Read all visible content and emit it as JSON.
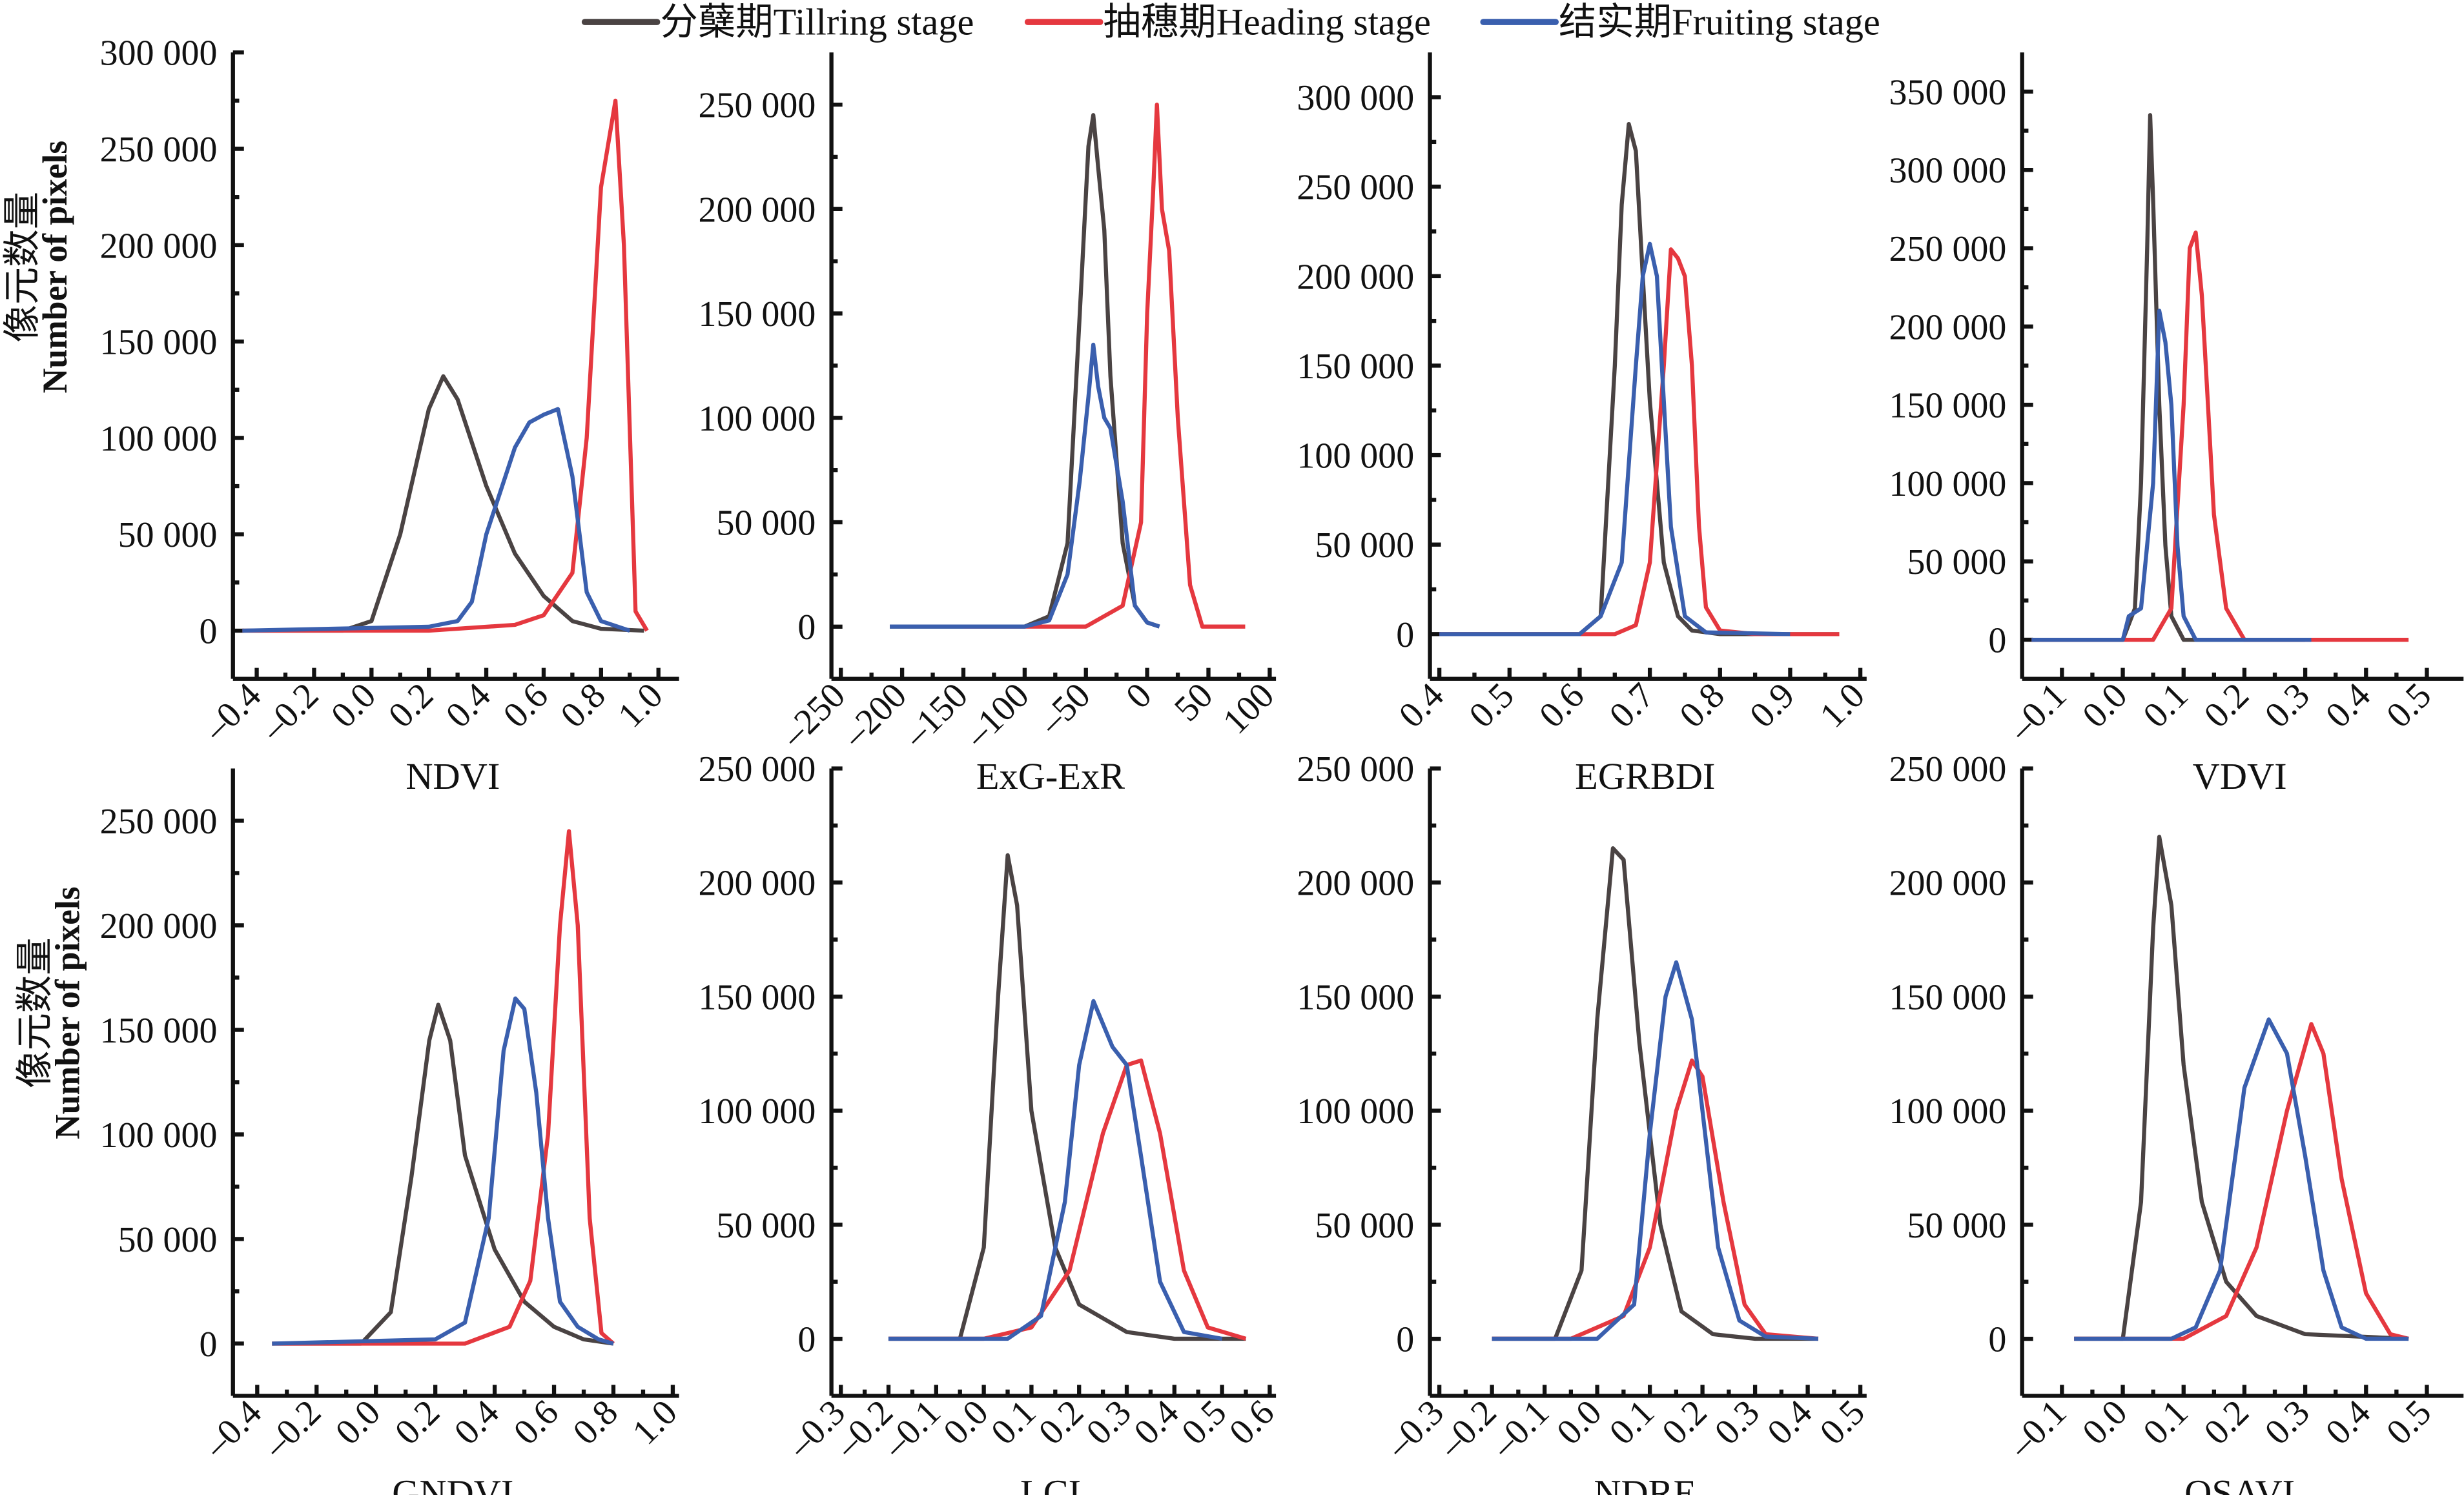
{
  "legend": [
    {
      "label": "分蘖期Tillring stage",
      "color": "#4a4343"
    },
    {
      "label": "抽穗期Heading stage",
      "color": "#e5383f"
    },
    {
      "label": "结实期Fruiting stage",
      "color": "#3a5fae"
    }
  ],
  "ylabel": {
    "cn": "像元数量",
    "en": "Number of pixels"
  },
  "chart_data": [
    {
      "type": "line",
      "title": "",
      "xlabel": "NDVI",
      "ylabel": "像元数量 Number of pixels",
      "xlim": [
        -0.45,
        1.05
      ],
      "xticks": [
        -0.4,
        -0.2,
        0.0,
        0.2,
        0.4,
        0.6,
        0.8,
        1.0
      ],
      "xtick_labels": [
        "-0.4",
        "-0.2",
        "0.0",
        "0.2",
        "0.4",
        "0.6",
        "0.8",
        "1.0"
      ],
      "ylim": [
        -25000,
        300000
      ],
      "yticks": [
        0,
        50000,
        100000,
        150000,
        200000,
        250000,
        300000
      ],
      "ytick_labels": [
        "0",
        "50 000",
        "100 000",
        "150 000",
        "200 000",
        "250 000",
        "300 000"
      ],
      "series": [
        {
          "name": "分蘖期Tillring stage",
          "x": [
            -0.45,
            -0.1,
            0.0,
            0.1,
            0.2,
            0.25,
            0.3,
            0.4,
            0.5,
            0.6,
            0.7,
            0.8,
            0.95
          ],
          "y": [
            0,
            0,
            5000,
            50000,
            115000,
            132000,
            120000,
            75000,
            40000,
            18000,
            5000,
            1000,
            0
          ]
        },
        {
          "name": "抽穗期Heading stage",
          "x": [
            -0.45,
            0.2,
            0.5,
            0.6,
            0.7,
            0.75,
            0.8,
            0.85,
            0.88,
            0.92,
            0.96
          ],
          "y": [
            0,
            0,
            3000,
            8000,
            30000,
            100000,
            230000,
            275000,
            200000,
            10000,
            0
          ]
        },
        {
          "name": "结实期Fruiting stage",
          "x": [
            -0.45,
            0.2,
            0.3,
            0.35,
            0.4,
            0.5,
            0.55,
            0.6,
            0.65,
            0.7,
            0.75,
            0.8,
            0.9
          ],
          "y": [
            0,
            2000,
            5000,
            15000,
            50000,
            95000,
            108000,
            112000,
            115000,
            80000,
            20000,
            5000,
            0
          ]
        }
      ]
    },
    {
      "type": "line",
      "xlabel": "ExG-ExR",
      "xlim": [
        -250,
        100
      ],
      "xticks": [
        -250,
        -200,
        -150,
        -100,
        -50,
        0,
        50,
        100
      ],
      "xtick_labels": [
        "-250",
        "-200",
        "-150",
        "-100",
        "-50",
        "0",
        "50",
        "100"
      ],
      "ylim": [
        -25000,
        275000
      ],
      "yticks": [
        0,
        50000,
        100000,
        150000,
        200000,
        250000
      ],
      "ytick_labels": [
        "0",
        "50 000",
        "100 000",
        "150 000",
        "200 000",
        "250 000"
      ],
      "series": [
        {
          "name": "分蘖期Tillring stage",
          "x": [
            -210,
            -100,
            -80,
            -65,
            -55,
            -48,
            -44,
            -40,
            -35,
            -30,
            -20,
            -10,
            0,
            10
          ],
          "y": [
            0,
            0,
            5000,
            40000,
            150000,
            230000,
            245000,
            220000,
            190000,
            120000,
            40000,
            10000,
            2000,
            0
          ]
        },
        {
          "name": "抽穗期Heading stage",
          "x": [
            -150,
            -50,
            -20,
            -5,
            0,
            5,
            8,
            12,
            18,
            25,
            35,
            45,
            80
          ],
          "y": [
            0,
            0,
            10000,
            50000,
            150000,
            210000,
            250000,
            200000,
            180000,
            100000,
            20000,
            0,
            0
          ]
        },
        {
          "name": "结实期Fruiting stage",
          "x": [
            -210,
            -100,
            -80,
            -65,
            -55,
            -48,
            -44,
            -40,
            -35,
            -30,
            -20,
            -10,
            0,
            10
          ],
          "y": [
            0,
            0,
            3000,
            25000,
            70000,
            110000,
            135000,
            115000,
            100000,
            95000,
            60000,
            10000,
            2000,
            0
          ]
        }
      ]
    },
    {
      "type": "line",
      "xlabel": "EGRBDI",
      "xlim": [
        0.4,
        1.0
      ],
      "xticks": [
        0.4,
        0.5,
        0.6,
        0.7,
        0.8,
        0.9,
        1.0
      ],
      "xtick_labels": [
        "0.4",
        "0.5",
        "0.6",
        "0.7",
        "0.8",
        "0.9",
        "1.0"
      ],
      "ylim": [
        -25000,
        325000
      ],
      "yticks": [
        0,
        50000,
        100000,
        150000,
        200000,
        250000,
        300000
      ],
      "ytick_labels": [
        "0",
        "50 000",
        "100 000",
        "150 000",
        "200 000",
        "250 000",
        "300 000"
      ],
      "series": [
        {
          "name": "分蘖期Tillring stage",
          "x": [
            0.4,
            0.6,
            0.63,
            0.65,
            0.66,
            0.67,
            0.68,
            0.69,
            0.7,
            0.72,
            0.74,
            0.76,
            0.8,
            0.97
          ],
          "y": [
            0,
            0,
            10000,
            150000,
            240000,
            285000,
            270000,
            200000,
            130000,
            40000,
            10000,
            2000,
            0,
            0
          ]
        },
        {
          "name": "抽穗期Heading stage",
          "x": [
            0.4,
            0.65,
            0.68,
            0.7,
            0.72,
            0.73,
            0.74,
            0.75,
            0.76,
            0.77,
            0.78,
            0.8,
            0.85,
            0.97
          ],
          "y": [
            0,
            0,
            5000,
            40000,
            150000,
            215000,
            210000,
            200000,
            150000,
            60000,
            15000,
            2000,
            0,
            0
          ]
        },
        {
          "name": "结实期Fruiting stage",
          "x": [
            0.4,
            0.6,
            0.63,
            0.66,
            0.68,
            0.69,
            0.7,
            0.71,
            0.72,
            0.73,
            0.75,
            0.78,
            0.9
          ],
          "y": [
            0,
            0,
            10000,
            40000,
            150000,
            200000,
            218000,
            200000,
            130000,
            60000,
            10000,
            1000,
            0
          ]
        }
      ]
    },
    {
      "type": "line",
      "xlabel": "VDVI",
      "xlim": [
        -0.15,
        0.55
      ],
      "xticks": [
        -0.1,
        0.0,
        0.1,
        0.2,
        0.3,
        0.4,
        0.5
      ],
      "xtick_labels": [
        "-0.1",
        "0.0",
        "0.1",
        "0.2",
        "0.3",
        "0.4",
        "0.5"
      ],
      "ylim": [
        -25000,
        375000
      ],
      "yticks": [
        0,
        50000,
        100000,
        150000,
        200000,
        250000,
        300000,
        350000
      ],
      "ytick_labels": [
        "0",
        "50 000",
        "100 000",
        "150 000",
        "200 000",
        "250 000",
        "300 000",
        "350 000"
      ],
      "series": [
        {
          "name": "分蘖期Tillring stage",
          "x": [
            -0.15,
            0.0,
            0.02,
            0.03,
            0.04,
            0.045,
            0.05,
            0.06,
            0.07,
            0.08,
            0.1,
            0.3
          ],
          "y": [
            0,
            0,
            20000,
            100000,
            250000,
            335000,
            280000,
            150000,
            60000,
            15000,
            0,
            0
          ]
        },
        {
          "name": "抽穗期Heading stage",
          "x": [
            -0.15,
            0.05,
            0.08,
            0.1,
            0.11,
            0.12,
            0.13,
            0.14,
            0.15,
            0.17,
            0.2,
            0.47
          ],
          "y": [
            0,
            0,
            20000,
            150000,
            250000,
            260000,
            220000,
            150000,
            80000,
            20000,
            0,
            0
          ]
        },
        {
          "name": "结实期Fruiting stage",
          "x": [
            -0.15,
            0.0,
            0.01,
            0.03,
            0.05,
            0.06,
            0.07,
            0.08,
            0.09,
            0.1,
            0.12,
            0.31
          ],
          "y": [
            0,
            0,
            15000,
            20000,
            100000,
            210000,
            190000,
            150000,
            60000,
            15000,
            0,
            0
          ]
        }
      ]
    },
    {
      "type": "line",
      "xlabel": "GNDVI",
      "xlim": [
        -0.45,
        1.0
      ],
      "xticks": [
        -0.4,
        -0.2,
        0.0,
        0.2,
        0.4,
        0.6,
        0.8,
        1.0
      ],
      "xtick_labels": [
        "-0.4",
        "-0.2",
        "0.0",
        "0.2",
        "0.4",
        "0.6",
        "0.8",
        "1.0"
      ],
      "ylim": [
        -25000,
        275000
      ],
      "yticks": [
        0,
        50000,
        100000,
        150000,
        200000,
        250000
      ],
      "ytick_labels": [
        "0",
        "50 000",
        "100 000",
        "150 000",
        "200 000",
        "250 000"
      ],
      "series": [
        {
          "name": "分蘖期Tillring stage",
          "x": [
            -0.35,
            -0.05,
            0.05,
            0.12,
            0.18,
            0.21,
            0.25,
            0.3,
            0.4,
            0.5,
            0.6,
            0.7,
            0.8
          ],
          "y": [
            0,
            0,
            15000,
            80000,
            145000,
            162000,
            145000,
            90000,
            45000,
            20000,
            8000,
            2000,
            0
          ]
        },
        {
          "name": "抽穗期Heading stage",
          "x": [
            -0.35,
            0.3,
            0.45,
            0.52,
            0.58,
            0.62,
            0.65,
            0.68,
            0.72,
            0.76,
            0.8
          ],
          "y": [
            0,
            0,
            8000,
            30000,
            100000,
            200000,
            245000,
            200000,
            60000,
            5000,
            0
          ]
        },
        {
          "name": "结实期Fruiting stage",
          "x": [
            -0.35,
            0.2,
            0.3,
            0.38,
            0.43,
            0.47,
            0.5,
            0.54,
            0.58,
            0.62,
            0.68,
            0.75,
            0.8
          ],
          "y": [
            0,
            2000,
            10000,
            60000,
            140000,
            165000,
            160000,
            120000,
            60000,
            20000,
            8000,
            2000,
            0
          ]
        }
      ]
    },
    {
      "type": "line",
      "xlabel": "LCI",
      "xlim": [
        -0.3,
        0.6
      ],
      "xticks": [
        -0.3,
        -0.2,
        -0.1,
        0.0,
        0.1,
        0.2,
        0.3,
        0.4,
        0.5,
        0.6
      ],
      "xtick_labels": [
        "-0.3",
        "-0.2",
        "-0.1",
        "0.0",
        "0.1",
        "0.2",
        "0.3",
        "0.4",
        "0.5",
        "0.6"
      ],
      "ylim": [
        -25000,
        250000
      ],
      "yticks": [
        0,
        50000,
        100000,
        150000,
        200000,
        250000
      ],
      "ytick_labels": [
        "0",
        "50 000",
        "100 000",
        "150 000",
        "200 000",
        "250 000"
      ],
      "series": [
        {
          "name": "分蘖期Tillring stage",
          "x": [
            -0.2,
            -0.05,
            0.0,
            0.03,
            0.05,
            0.07,
            0.1,
            0.15,
            0.2,
            0.3,
            0.4,
            0.55
          ],
          "y": [
            0,
            0,
            40000,
            150000,
            212000,
            190000,
            100000,
            40000,
            15000,
            3000,
            0,
            0
          ]
        },
        {
          "name": "抽穗期Heading stage",
          "x": [
            -0.2,
            0.0,
            0.1,
            0.18,
            0.25,
            0.3,
            0.33,
            0.37,
            0.42,
            0.47,
            0.55
          ],
          "y": [
            0,
            0,
            5000,
            30000,
            90000,
            120000,
            122000,
            90000,
            30000,
            5000,
            0
          ]
        },
        {
          "name": "结实期Fruiting stage",
          "x": [
            -0.2,
            0.05,
            0.12,
            0.17,
            0.2,
            0.23,
            0.27,
            0.3,
            0.33,
            0.37,
            0.42,
            0.5
          ],
          "y": [
            0,
            0,
            10000,
            60000,
            120000,
            148000,
            128000,
            120000,
            80000,
            25000,
            3000,
            0
          ]
        }
      ]
    },
    {
      "type": "line",
      "xlabel": "NDRE",
      "xlim": [
        -0.3,
        0.5
      ],
      "xticks": [
        -0.3,
        -0.2,
        -0.1,
        0.0,
        0.1,
        0.2,
        0.3,
        0.4,
        0.5
      ],
      "xtick_labels": [
        "-0.3",
        "-0.2",
        "-0.1",
        "0.0",
        "0.1",
        "0.2",
        "0.3",
        "0.4",
        "0.5"
      ],
      "ylim": [
        -25000,
        250000
      ],
      "yticks": [
        0,
        50000,
        100000,
        150000,
        200000,
        250000
      ],
      "ytick_labels": [
        "0",
        "50 000",
        "100 000",
        "150 000",
        "200 000",
        "250 000"
      ],
      "series": [
        {
          "name": "分蘖期Tillring stage",
          "x": [
            -0.2,
            -0.08,
            -0.03,
            0.0,
            0.03,
            0.05,
            0.08,
            0.12,
            0.16,
            0.22,
            0.3,
            0.42
          ],
          "y": [
            0,
            0,
            30000,
            140000,
            215000,
            210000,
            130000,
            50000,
            12000,
            2000,
            0,
            0
          ]
        },
        {
          "name": "抽穗期Heading stage",
          "x": [
            -0.2,
            -0.05,
            0.05,
            0.1,
            0.15,
            0.18,
            0.2,
            0.24,
            0.28,
            0.32,
            0.42
          ],
          "y": [
            0,
            0,
            10000,
            40000,
            100000,
            122000,
            115000,
            60000,
            15000,
            2000,
            0
          ]
        },
        {
          "name": "结实期Fruiting stage",
          "x": [
            -0.2,
            0.0,
            0.07,
            0.1,
            0.13,
            0.15,
            0.18,
            0.2,
            0.23,
            0.27,
            0.32,
            0.42
          ],
          "y": [
            0,
            0,
            15000,
            90000,
            150000,
            165000,
            140000,
            100000,
            40000,
            8000,
            1000,
            0
          ]
        }
      ]
    },
    {
      "type": "line",
      "xlabel": "OSAVI",
      "xlim": [
        -0.15,
        0.55
      ],
      "xticks": [
        -0.1,
        0.0,
        0.1,
        0.2,
        0.3,
        0.4,
        0.5
      ],
      "xtick_labels": [
        "-0.1",
        "0.0",
        "0.1",
        "0.2",
        "0.3",
        "0.4",
        "0.5"
      ],
      "ylim": [
        -25000,
        250000
      ],
      "yticks": [
        0,
        50000,
        100000,
        150000,
        200000,
        250000
      ],
      "ytick_labels": [
        "0",
        "50 000",
        "100 000",
        "150 000",
        "200 000",
        "250 000"
      ],
      "series": [
        {
          "name": "分蘖期Tillring stage",
          "x": [
            -0.08,
            0.0,
            0.03,
            0.05,
            0.06,
            0.08,
            0.1,
            0.13,
            0.17,
            0.22,
            0.3,
            0.47
          ],
          "y": [
            0,
            0,
            60000,
            180000,
            220000,
            190000,
            120000,
            60000,
            25000,
            10000,
            2000,
            0
          ]
        },
        {
          "name": "抽穗期Heading stage",
          "x": [
            -0.08,
            0.1,
            0.17,
            0.22,
            0.27,
            0.31,
            0.33,
            0.36,
            0.4,
            0.44,
            0.47
          ],
          "y": [
            0,
            0,
            10000,
            40000,
            100000,
            138000,
            125000,
            70000,
            20000,
            2000,
            0
          ]
        },
        {
          "name": "结实期Fruiting stage",
          "x": [
            -0.08,
            0.08,
            0.12,
            0.16,
            0.2,
            0.24,
            0.27,
            0.3,
            0.33,
            0.36,
            0.4,
            0.47
          ],
          "y": [
            0,
            0,
            5000,
            30000,
            110000,
            140000,
            125000,
            80000,
            30000,
            5000,
            0,
            0
          ]
        }
      ]
    }
  ]
}
